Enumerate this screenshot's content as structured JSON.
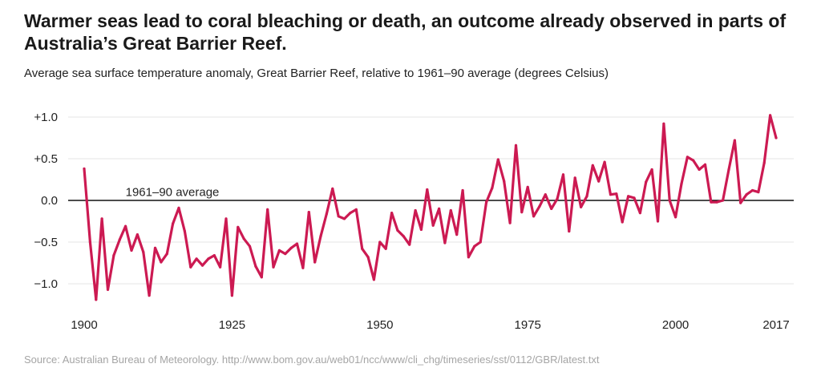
{
  "chart_data": {
    "type": "line",
    "title": "Warmer seas lead to coral bleaching or death, an outcome already observed in parts of Australia’s Great Barrier Reef.",
    "subtitle": "Average sea surface temperature anomaly, Great Barrier Reef, relative to 1961–90 average (degrees Celsius)",
    "source": "Source: Australian Bureau of Meteorology. http://www.bom.gov.au/web01/ncc/www/cli_chg/timeseries/sst/0112/GBR/latest.txt",
    "xlabel": "",
    "ylabel": "",
    "xlim": [
      1900,
      2017
    ],
    "ylim": [
      -1.2,
      1.05
    ],
    "x_ticks": [
      {
        "value": 1900,
        "label": "1900"
      },
      {
        "value": 1925,
        "label": "1925"
      },
      {
        "value": 1950,
        "label": "1950"
      },
      {
        "value": 1975,
        "label": "1975"
      },
      {
        "value": 2000,
        "label": "2000"
      },
      {
        "value": 2017,
        "label": "2017"
      }
    ],
    "y_ticks": [
      {
        "value": 1.0,
        "label": "+1.0"
      },
      {
        "value": 0.5,
        "label": "+0.5"
      },
      {
        "value": 0.0,
        "label": "0.0"
      },
      {
        "value": -0.5,
        "label": "−0.5"
      },
      {
        "value": -1.0,
        "label": "−1.0"
      }
    ],
    "annotation": {
      "text": "1961–90 average",
      "x": 1907,
      "y": 0.1
    },
    "series": [
      {
        "name": "Sea surface temperature anomaly",
        "color": "#cc1a52",
        "x": [
          1900,
          1901,
          1902,
          1903,
          1904,
          1905,
          1906,
          1907,
          1908,
          1909,
          1910,
          1911,
          1912,
          1913,
          1914,
          1915,
          1916,
          1917,
          1918,
          1919,
          1920,
          1921,
          1922,
          1923,
          1924,
          1925,
          1926,
          1927,
          1928,
          1929,
          1930,
          1931,
          1932,
          1933,
          1934,
          1935,
          1936,
          1937,
          1938,
          1939,
          1940,
          1941,
          1942,
          1943,
          1944,
          1945,
          1946,
          1947,
          1948,
          1949,
          1950,
          1951,
          1952,
          1953,
          1954,
          1955,
          1956,
          1957,
          1958,
          1959,
          1960,
          1961,
          1962,
          1963,
          1964,
          1965,
          1966,
          1967,
          1968,
          1969,
          1970,
          1971,
          1972,
          1973,
          1974,
          1975,
          1976,
          1977,
          1978,
          1979,
          1980,
          1981,
          1982,
          1983,
          1984,
          1985,
          1986,
          1987,
          1988,
          1989,
          1990,
          1991,
          1992,
          1993,
          1994,
          1995,
          1996,
          1997,
          1998,
          1999,
          2000,
          2001,
          2002,
          2003,
          2004,
          2005,
          2006,
          2007,
          2008,
          2009,
          2010,
          2011,
          2012,
          2013,
          2014,
          2015,
          2016,
          2017
        ],
        "values": [
          0.38,
          -0.5,
          -1.19,
          -0.22,
          -1.07,
          -0.66,
          -0.47,
          -0.31,
          -0.6,
          -0.41,
          -0.62,
          -1.14,
          -0.57,
          -0.74,
          -0.64,
          -0.28,
          -0.09,
          -0.37,
          -0.8,
          -0.7,
          -0.78,
          -0.7,
          -0.66,
          -0.8,
          -0.22,
          -1.14,
          -0.32,
          -0.46,
          -0.55,
          -0.79,
          -0.92,
          -0.11,
          -0.8,
          -0.6,
          -0.64,
          -0.57,
          -0.52,
          -0.81,
          -0.14,
          -0.74,
          -0.43,
          -0.16,
          0.14,
          -0.19,
          -0.22,
          -0.15,
          -0.11,
          -0.58,
          -0.68,
          -0.95,
          -0.5,
          -0.58,
          -0.15,
          -0.36,
          -0.43,
          -0.53,
          -0.12,
          -0.35,
          0.13,
          -0.3,
          -0.1,
          -0.51,
          -0.12,
          -0.41,
          0.12,
          -0.68,
          -0.55,
          -0.5,
          -0.02,
          0.15,
          0.49,
          0.23,
          -0.27,
          0.66,
          -0.14,
          0.16,
          -0.19,
          -0.07,
          0.07,
          -0.1,
          0.02,
          0.31,
          -0.37,
          0.27,
          -0.08,
          0.05,
          0.42,
          0.23,
          0.46,
          0.07,
          0.08,
          -0.26,
          0.05,
          0.03,
          -0.15,
          0.22,
          0.37,
          -0.25,
          0.92,
          0.0,
          -0.2,
          0.2,
          0.52,
          0.48,
          0.37,
          0.43,
          -0.02,
          -0.02,
          0.0,
          0.37,
          0.72,
          -0.03,
          0.07,
          0.12,
          0.1,
          0.45,
          1.02,
          0.75
        ]
      }
    ]
  }
}
